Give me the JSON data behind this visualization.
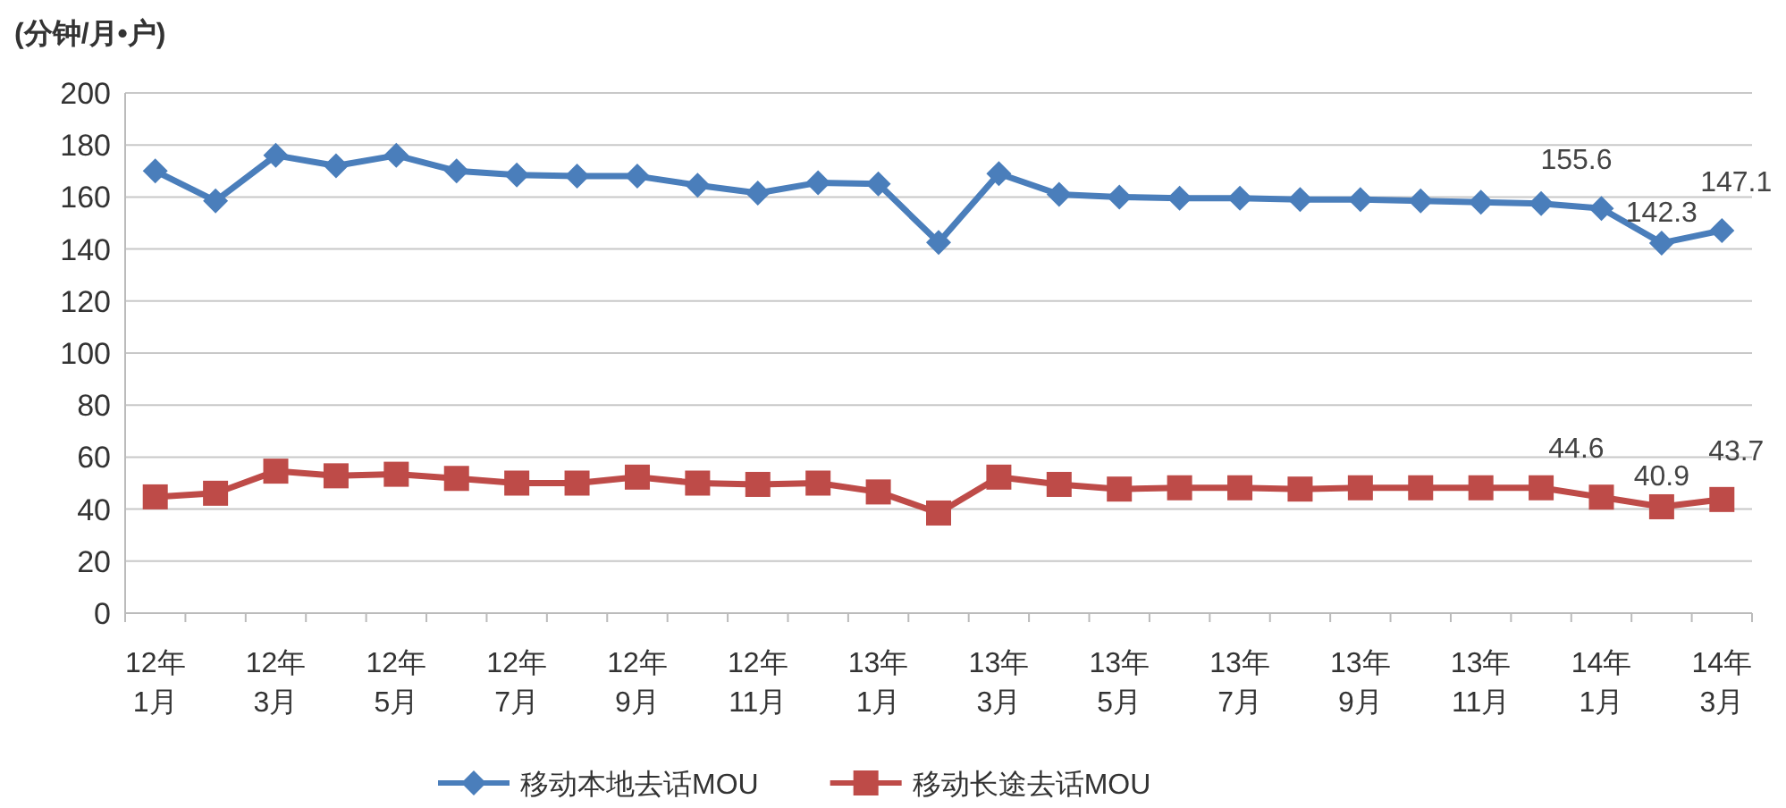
{
  "chart_data": {
    "type": "line",
    "ylabel": "(分钟/月•户)",
    "categories": [
      "12年\n1月",
      null,
      "12年\n3月",
      null,
      "12年\n5月",
      null,
      "12年\n7月",
      null,
      "12年\n9月",
      null,
      "12年\n11月",
      null,
      "13年\n1月",
      null,
      "13年\n3月",
      null,
      "13年\n5月",
      null,
      "13年\n7月",
      null,
      "13年\n9月",
      null,
      "13年\n11月",
      null,
      "14年\n1月",
      null,
      "14年\n3月"
    ],
    "series": [
      {
        "name": "移动本地去话MOU",
        "color": "#4a7ebb",
        "marker": "diamond",
        "values": [
          170,
          158.5,
          176,
          172,
          176,
          170,
          168.5,
          168,
          168,
          164.5,
          161.5,
          165.5,
          165,
          142.5,
          169,
          161,
          160,
          159.5,
          159.5,
          159,
          159,
          158.5,
          158,
          157.5,
          155.6,
          142.3,
          147.1
        ],
        "value_labels": [
          null,
          null,
          null,
          null,
          null,
          null,
          null,
          null,
          null,
          null,
          null,
          null,
          null,
          null,
          null,
          null,
          null,
          null,
          null,
          null,
          null,
          null,
          null,
          null,
          "155.6",
          "142.3",
          "147.1"
        ]
      },
      {
        "name": "移动长途去话MOU",
        "color": "#be4b48",
        "marker": "square",
        "values": [
          44.7,
          46.1,
          54.6,
          52.8,
          53.4,
          51.8,
          50,
          50,
          52.3,
          50,
          49.5,
          50,
          46.6,
          38.5,
          52.3,
          49.5,
          47.7,
          48.2,
          48.2,
          47.7,
          48.2,
          48.2,
          48.2,
          48.2,
          44.6,
          40.9,
          43.7
        ],
        "value_labels": [
          null,
          null,
          null,
          null,
          null,
          null,
          null,
          null,
          null,
          null,
          null,
          null,
          null,
          null,
          null,
          null,
          null,
          null,
          null,
          null,
          null,
          null,
          null,
          null,
          "44.6",
          "40.9",
          "43.7"
        ]
      }
    ],
    "ylim": [
      0,
      200
    ],
    "yticks": [
      0,
      20,
      40,
      60,
      80,
      100,
      120,
      140,
      160,
      180,
      200
    ],
    "grid": "y",
    "legend": "bottom",
    "line_style": "solid"
  }
}
